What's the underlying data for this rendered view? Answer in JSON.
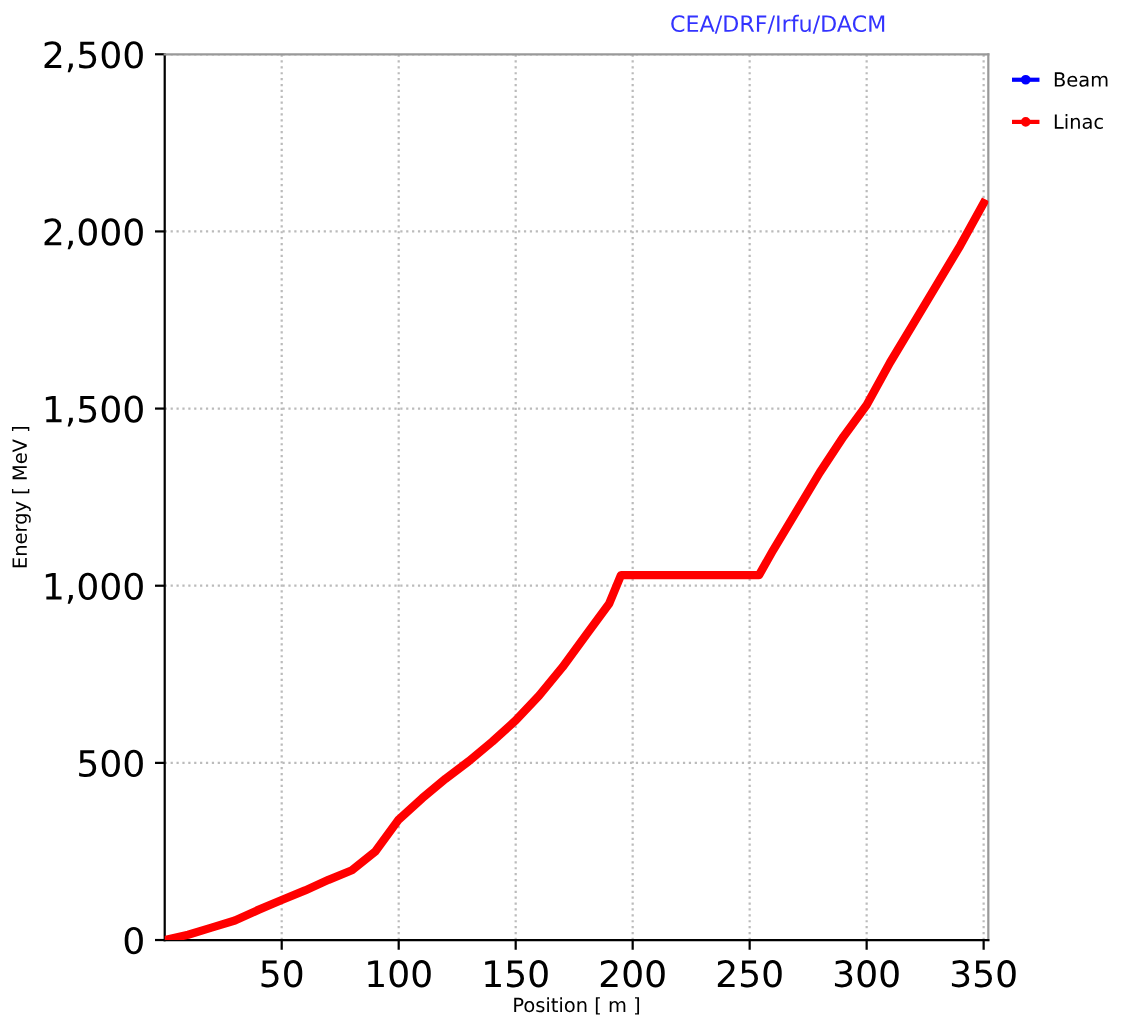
{
  "chart_data": {
    "type": "line",
    "title": "CEA/DRF/Irfu/DACM",
    "xlabel": "Position [ m ]",
    "ylabel": "Energy [ MeV ]",
    "x": [
      0,
      10,
      20,
      30,
      40,
      50,
      60,
      70,
      80,
      90,
      100,
      110,
      120,
      130,
      140,
      150,
      160,
      170,
      180,
      190,
      195,
      254,
      260,
      270,
      280,
      290,
      300,
      310,
      320,
      330,
      340,
      350
    ],
    "series": [
      {
        "name": "Beam",
        "color": "#0000ff",
        "values": [
          null,
          null,
          null,
          null,
          null,
          null,
          null,
          null,
          null,
          null,
          null,
          null,
          null,
          null,
          null,
          null,
          null,
          null,
          null,
          null,
          null,
          null,
          null,
          null,
          null,
          null,
          null,
          null,
          null,
          null,
          null,
          null
        ]
      },
      {
        "name": "Linac",
        "color": "#ff0000",
        "values": [
          0,
          15,
          35,
          55,
          85,
          113,
          140,
          170,
          197,
          250,
          340,
          400,
          455,
          505,
          560,
          620,
          690,
          770,
          860,
          950,
          1030,
          1030,
          1100,
          1210,
          1320,
          1420,
          1510,
          1630,
          1740,
          1850,
          1960,
          2080
        ]
      }
    ],
    "xlim": [
      0,
      352
    ],
    "xticks": [
      50,
      100,
      150,
      200,
      250,
      300,
      350
    ],
    "ylim": [
      0,
      2500
    ],
    "yticks": [
      {
        "value": 0,
        "label": "0"
      },
      {
        "value": 500,
        "label": "500"
      },
      {
        "value": 1000,
        "label": "1,000"
      },
      {
        "value": 1500,
        "label": "1,500"
      },
      {
        "value": 2000,
        "label": "2,000"
      },
      {
        "value": 2500,
        "label": "2,500"
      }
    ],
    "grid": true,
    "legend": "top right",
    "line_style": "solid"
  }
}
